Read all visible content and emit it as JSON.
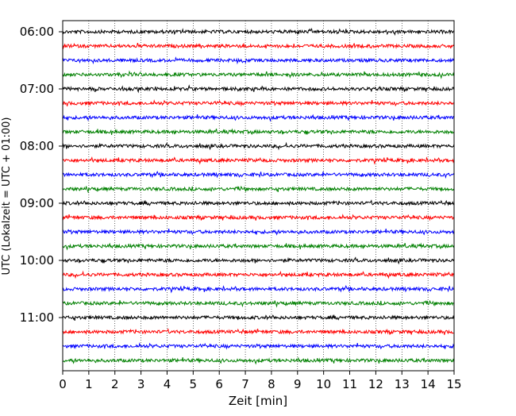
{
  "chart_data": {
    "type": "line",
    "title": "",
    "xlabel": "Zeit  [min]",
    "ylabel": "UTC (Lokalzeit = UTC + 01:00)",
    "xlim": [
      0,
      15
    ],
    "x_ticks": [
      0,
      1,
      2,
      3,
      4,
      5,
      6,
      7,
      8,
      9,
      10,
      11,
      12,
      13,
      14,
      15
    ],
    "x_tick_labels": [
      "0",
      "1",
      "2",
      "3",
      "4",
      "5",
      "6",
      "7",
      "8",
      "9",
      "10",
      "11",
      "12",
      "13",
      "14",
      "15"
    ],
    "y_ticks": [
      {
        "label": "06:00",
        "trace_index": 0
      },
      {
        "label": "07:00",
        "trace_index": 4
      },
      {
        "label": "08:00",
        "trace_index": 8
      },
      {
        "label": "09:00",
        "trace_index": 12
      },
      {
        "label": "10:00",
        "trace_index": 16
      },
      {
        "label": "11:00",
        "trace_index": 20
      }
    ],
    "grid": "vertical dotted at each minute",
    "legend": "none",
    "trace_colors": [
      "#000000",
      "#ff0000",
      "#0000ff",
      "#008000"
    ],
    "series": [
      {
        "start": "06:00",
        "color": "#000000"
      },
      {
        "start": "06:15",
        "color": "#ff0000"
      },
      {
        "start": "06:30",
        "color": "#0000ff"
      },
      {
        "start": "06:45",
        "color": "#008000"
      },
      {
        "start": "07:00",
        "color": "#000000"
      },
      {
        "start": "07:15",
        "color": "#ff0000"
      },
      {
        "start": "07:30",
        "color": "#0000ff"
      },
      {
        "start": "07:45",
        "color": "#008000"
      },
      {
        "start": "08:00",
        "color": "#000000"
      },
      {
        "start": "08:15",
        "color": "#ff0000"
      },
      {
        "start": "08:30",
        "color": "#0000ff"
      },
      {
        "start": "08:45",
        "color": "#008000"
      },
      {
        "start": "09:00",
        "color": "#000000"
      },
      {
        "start": "09:15",
        "color": "#ff0000"
      },
      {
        "start": "09:30",
        "color": "#0000ff"
      },
      {
        "start": "09:45",
        "color": "#008000"
      },
      {
        "start": "10:00",
        "color": "#000000"
      },
      {
        "start": "10:15",
        "color": "#ff0000"
      },
      {
        "start": "10:30",
        "color": "#0000ff"
      },
      {
        "start": "10:45",
        "color": "#008000"
      },
      {
        "start": "11:00",
        "color": "#000000"
      },
      {
        "start": "11:15",
        "color": "#ff0000"
      },
      {
        "start": "11:30",
        "color": "#0000ff"
      },
      {
        "start": "11:45",
        "color": "#008000"
      }
    ]
  }
}
